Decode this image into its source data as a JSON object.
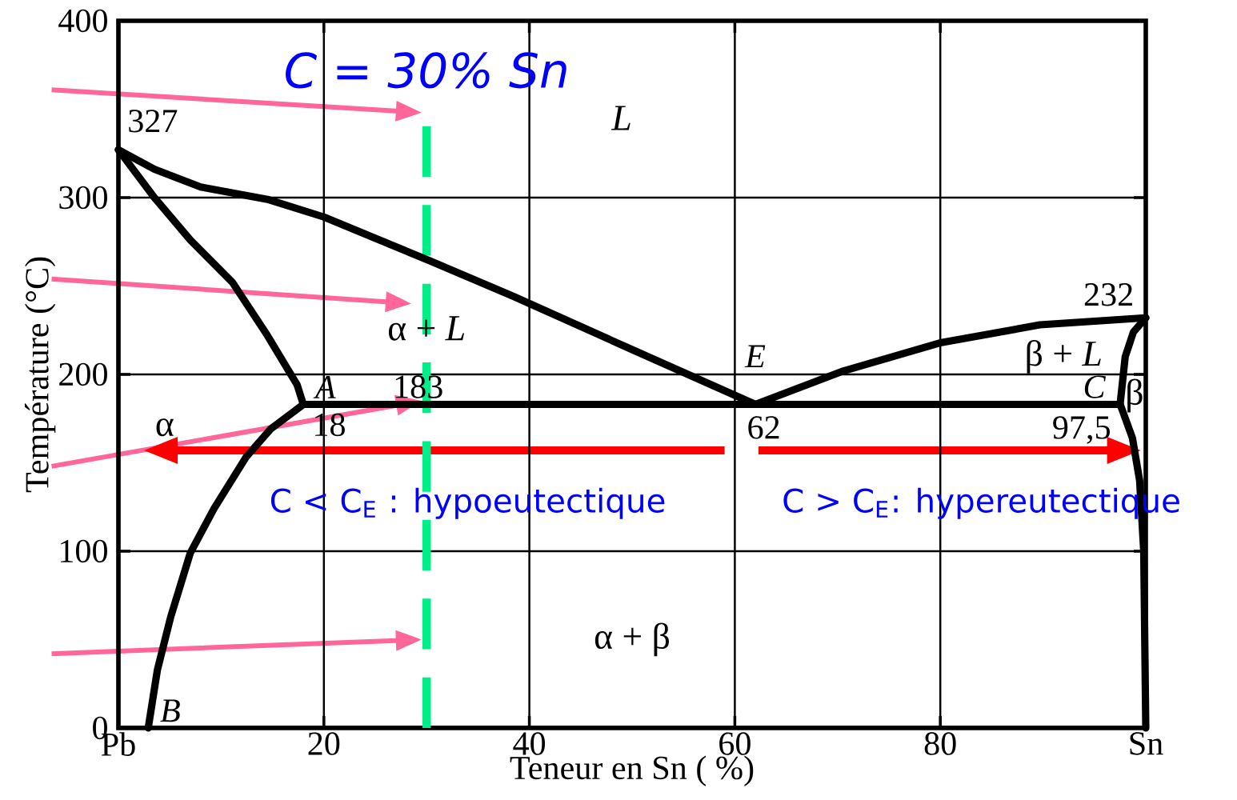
{
  "chart_data": {
    "type": "line",
    "xlabel": "Teneur en Sn ( %)",
    "ylabel": "Température (°C)",
    "xlim": [
      0,
      100
    ],
    "ylim": [
      0,
      400
    ],
    "xticks": [
      {
        "value": 0,
        "label": "Pb"
      },
      20,
      40,
      60,
      80,
      {
        "value": 100,
        "label": "Sn"
      }
    ],
    "yticks": [
      0,
      100,
      200,
      300,
      400
    ],
    "grid": true,
    "marker": "none",
    "line_style": "solid",
    "series": [
      {
        "color": "#000000",
        "x": [
          0,
          3.5,
          8,
          14.5,
          20,
          30.4,
          38.5,
          50,
          62
        ],
        "values": [
          327,
          316,
          306,
          299,
          289,
          264,
          244,
          214,
          183
        ]
      },
      {
        "color": "#000000",
        "x": [
          0,
          3.5,
          7,
          11.1,
          14.5,
          17.4,
          18
        ],
        "values": [
          327,
          300,
          276,
          252,
          222,
          194,
          183
        ]
      },
      {
        "color": "#000000",
        "x": [
          18,
          14.8,
          12.4,
          9.3,
          7,
          5.1,
          3.8,
          2.9
        ],
        "values": [
          183,
          169,
          153,
          124,
          99,
          63,
          33,
          0
        ]
      },
      {
        "color": "#000000",
        "x": [
          18,
          97.5
        ],
        "values": [
          183,
          183
        ]
      },
      {
        "color": "#000000",
        "x": [
          62,
          70.6,
          80.1,
          89.7,
          100
        ],
        "values": [
          183,
          202,
          218,
          228,
          232
        ]
      },
      {
        "color": "#000000",
        "x": [
          97.5,
          98,
          98.8,
          100
        ],
        "values": [
          183,
          210,
          224,
          232
        ]
      },
      {
        "color": "#000000",
        "x": [
          97.5,
          97.7,
          98.7,
          99.4,
          99.8,
          100
        ],
        "values": [
          183,
          180,
          164,
          140,
          100,
          0
        ]
      }
    ],
    "ref_lines": [
      {
        "axis": "x",
        "value": 30,
        "label": "C = 30% Sn",
        "color": "#00ee88",
        "line_style": "dashed"
      }
    ],
    "annotations": [
      {
        "text": "327",
        "x": 0,
        "y": 327
      },
      {
        "text": "232",
        "x": 100,
        "y": 232
      },
      {
        "text": "183",
        "x": 30,
        "y": 183
      },
      {
        "text": "A",
        "x": 18,
        "y": 183
      },
      {
        "text": "18",
        "x": 18,
        "y": 183
      },
      {
        "text": "E",
        "x": 62,
        "y": 183
      },
      {
        "text": "62",
        "x": 62,
        "y": 183
      },
      {
        "text": "C",
        "x": 97.5,
        "y": 183
      },
      {
        "text": "97,5",
        "x": 97.5,
        "y": 183
      },
      {
        "text": "B",
        "x": 2.9,
        "y": 0
      },
      "L",
      "α + *L*",
      "β + *L*",
      "α",
      "β",
      "α + β",
      "C < C$_{E}$ : hypoeutectique",
      "C > C$_{E}$: hypereutectique"
    ]
  }
}
